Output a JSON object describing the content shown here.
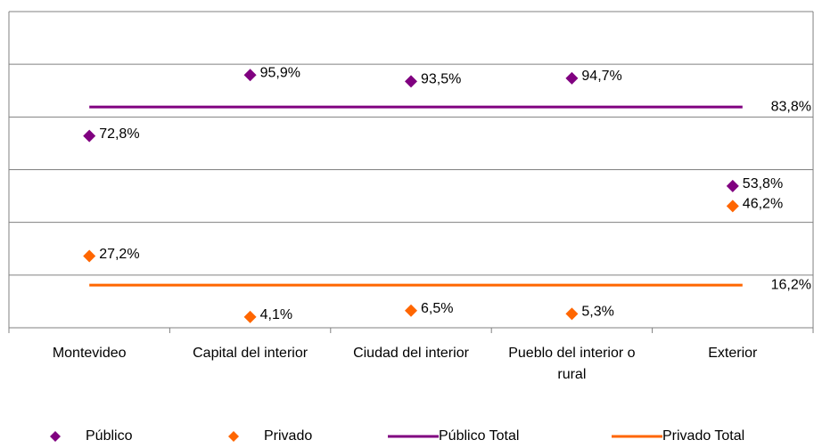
{
  "chart_data": {
    "type": "scatter",
    "categories": [
      "Montevideo",
      "Capital del interior",
      "Ciudad del interior",
      "Pueblo del interior o rural",
      "Exterior"
    ],
    "series": [
      {
        "name": "Público",
        "color": "#800080",
        "values": [
          72.8,
          95.9,
          93.5,
          94.7,
          53.8
        ],
        "value_labels": [
          "72,8%",
          "95,9%",
          "93,5%",
          "94,7%",
          "53,8%"
        ]
      },
      {
        "name": "Privado",
        "color": "#ff6600",
        "values": [
          27.2,
          4.1,
          6.5,
          5.3,
          46.2
        ],
        "value_labels": [
          "27,2%",
          "4,1%",
          "6,5%",
          "5,3%",
          "46,2%"
        ]
      }
    ],
    "reference_lines": [
      {
        "name": "Público Total",
        "color": "#800080",
        "value": 83.8,
        "value_label": "83,8%"
      },
      {
        "name": "Privado Total",
        "color": "#ff6600",
        "value": 16.2,
        "value_label": "16,2%"
      }
    ],
    "ylim": [
      0,
      120
    ],
    "yticks": [
      0,
      20,
      40,
      60,
      80,
      100,
      120
    ],
    "grid": true
  }
}
